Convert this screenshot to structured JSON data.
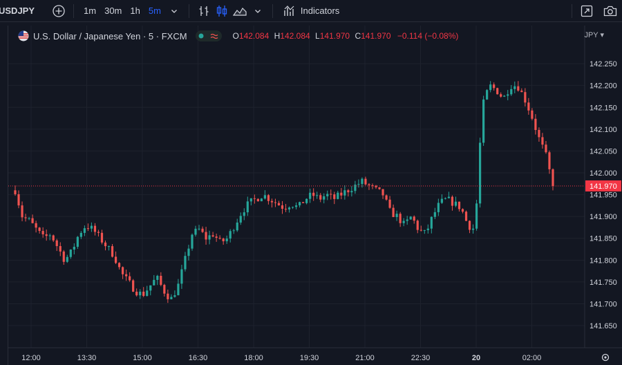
{
  "toolbar": {
    "symbol": "USDJPY",
    "intervals": [
      "1m",
      "30m",
      "1h",
      "5m"
    ],
    "active_interval": "5m",
    "indicators_label": "Indicators"
  },
  "legend": {
    "title": "U.S. Dollar / Japanese Yen · 5 · FXCM",
    "open_key": "O",
    "open": "142.084",
    "high_key": "H",
    "high": "142.084",
    "low_key": "L",
    "low": "141.970",
    "close_key": "C",
    "close": "141.970",
    "change": "−0.114 (−0.08%)"
  },
  "currency": "JPY ▾",
  "colors": {
    "up": "#26a69a",
    "down": "#ef5350",
    "accent": "#2962ff",
    "background": "#131722",
    "grid": "#1e222d"
  },
  "chart_data": {
    "type": "candlestick",
    "title": "U.S. Dollar / Japanese Yen · 5 · FXCM",
    "y_ticks": [
      "142.250",
      "142.200",
      "142.150",
      "142.100",
      "142.050",
      "142.000",
      "141.950",
      "141.900",
      "141.850",
      "141.800",
      "141.750",
      "141.700",
      "141.650"
    ],
    "ylim": [
      141.62,
      142.285
    ],
    "x_ticks": [
      "12:00",
      "13:30",
      "15:00",
      "16:30",
      "18:00",
      "19:30",
      "21:00",
      "22:30",
      "20",
      "02:00"
    ],
    "last_price": "141.970",
    "path": [
      141.96,
      141.9,
      141.89,
      141.87,
      141.85,
      141.86,
      141.83,
      141.8,
      141.82,
      141.86,
      141.88,
      141.87,
      141.85,
      141.83,
      141.81,
      141.77,
      141.75,
      141.73,
      141.72,
      141.74,
      141.76,
      141.73,
      141.71,
      141.74,
      141.8,
      141.86,
      141.87,
      141.85,
      141.86,
      141.84,
      141.85,
      141.88,
      141.91,
      141.93,
      141.94,
      141.95,
      141.94,
      141.93,
      141.92,
      141.93,
      141.92,
      141.94,
      141.95,
      141.94,
      141.95,
      141.94,
      141.95,
      141.96,
      141.97,
      141.98,
      141.97,
      141.96,
      141.95,
      141.91,
      141.9,
      141.88,
      141.9,
      141.87,
      141.86,
      141.9,
      141.93,
      141.94,
      141.93,
      141.92,
      141.88,
      141.87,
      142.15,
      142.2,
      142.19,
      142.17,
      142.2,
      142.2,
      142.17,
      142.13,
      142.08,
      142.04,
      141.97
    ]
  }
}
